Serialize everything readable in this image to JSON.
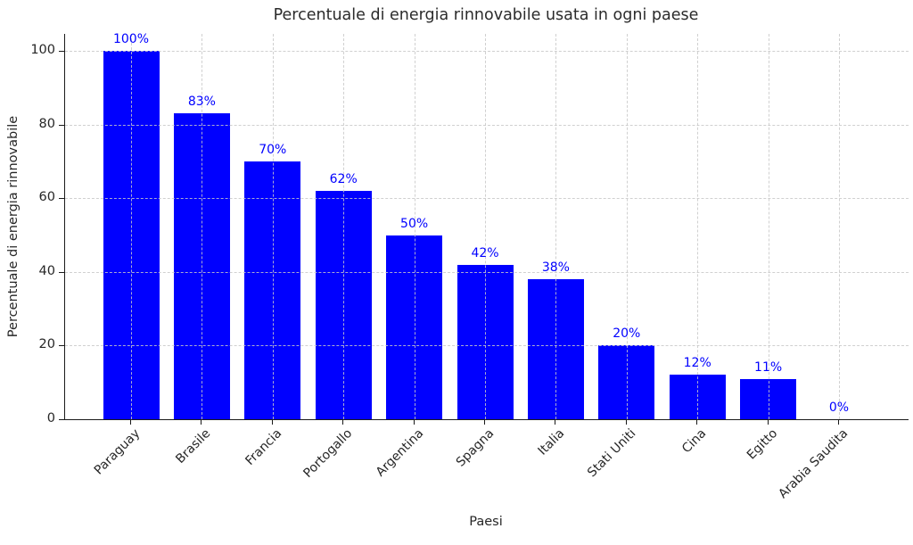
{
  "chart_data": {
    "type": "bar",
    "title": "Percentuale di energia rinnovabile usata in ogni paese",
    "xlabel": "Paesi",
    "ylabel": "Percentuale di energia rinnovabile",
    "categories": [
      "Paraguay",
      "Brasile",
      "Francia",
      "Portogallo",
      "Argentina",
      "Spagna",
      "Italia",
      "Stati Uniti",
      "Cina",
      "Egitto",
      "Arabia Saudita"
    ],
    "values": [
      100,
      83,
      70,
      62,
      50,
      42,
      38,
      20,
      12,
      11,
      0
    ],
    "bar_labels": [
      "100%",
      "83%",
      "70%",
      "62%",
      "50%",
      "42%",
      "38%",
      "20%",
      "12%",
      "11%",
      "0%"
    ],
    "yticks": [
      0,
      20,
      40,
      60,
      80,
      100
    ],
    "ylim": [
      0,
      100
    ],
    "bar_color": "#0000ff",
    "value_label_color": "#0000ff",
    "axis_color": "#1a1a1a",
    "grid": "dashed-both-axes",
    "legend": "none"
  }
}
